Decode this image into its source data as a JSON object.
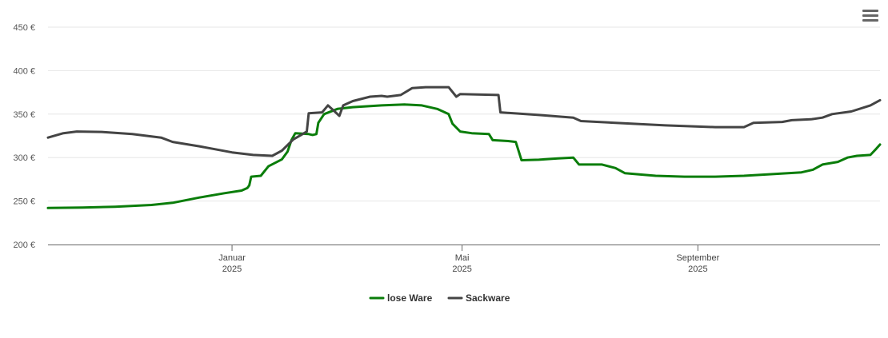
{
  "colors": {
    "lose_ware": "#0a7d0a",
    "sackware": "#444444",
    "grid": "#e6e6e6",
    "axis": "#666666"
  },
  "icons": {
    "menu": "hamburger-menu-icon"
  },
  "chart_data": {
    "type": "line",
    "title": "",
    "xlabel": "",
    "ylabel": "",
    "ylim": [
      200,
      450
    ],
    "yticks": [
      200,
      250,
      300,
      350,
      400,
      450
    ],
    "ytick_labels": [
      "200 €",
      "250 €",
      "300 €",
      "350 €",
      "400 €",
      "450 €"
    ],
    "xlim": [
      "2024-09-27",
      "2025-12-05"
    ],
    "xticks": [
      {
        "date": "2025-01-01",
        "line1": "Januar",
        "line2": "2025"
      },
      {
        "date": "2025-05-01",
        "line1": "Mai",
        "line2": "2025"
      },
      {
        "date": "2025-09-01",
        "line1": "September",
        "line2": "2025"
      }
    ],
    "grid": true,
    "legend": "bottom-center",
    "series": [
      {
        "name": "lose Ware",
        "color": "#0a7d0a",
        "points": [
          [
            "2024-09-27",
            242
          ],
          [
            "2024-10-15",
            242.5
          ],
          [
            "2024-11-01",
            243.5
          ],
          [
            "2024-11-20",
            245.5
          ],
          [
            "2024-12-01",
            248
          ],
          [
            "2024-12-15",
            254
          ],
          [
            "2024-12-28",
            259
          ],
          [
            "2025-01-06",
            262
          ],
          [
            "2025-01-09",
            265
          ],
          [
            "2025-01-10",
            268
          ],
          [
            "2025-01-11",
            278
          ],
          [
            "2025-01-16",
            279
          ],
          [
            "2025-01-20",
            290
          ],
          [
            "2025-01-27",
            298
          ],
          [
            "2025-01-30",
            307
          ],
          [
            "2025-02-01",
            320
          ],
          [
            "2025-02-03",
            328
          ],
          [
            "2025-02-10",
            327
          ],
          [
            "2025-02-12",
            326
          ],
          [
            "2025-02-14",
            327
          ],
          [
            "2025-02-15",
            340
          ],
          [
            "2025-02-18",
            350
          ],
          [
            "2025-02-25",
            356
          ],
          [
            "2025-03-05",
            358
          ],
          [
            "2025-03-20",
            360
          ],
          [
            "2025-04-01",
            361
          ],
          [
            "2025-04-10",
            360
          ],
          [
            "2025-04-18",
            356
          ],
          [
            "2025-04-24",
            350
          ],
          [
            "2025-04-26",
            339
          ],
          [
            "2025-04-30",
            330
          ],
          [
            "2025-05-06",
            328
          ],
          [
            "2025-05-15",
            327
          ],
          [
            "2025-05-17",
            320
          ],
          [
            "2025-05-25",
            319
          ],
          [
            "2025-05-29",
            318
          ],
          [
            "2025-06-01",
            297
          ],
          [
            "2025-06-10",
            297.5
          ],
          [
            "2025-06-20",
            299
          ],
          [
            "2025-06-28",
            300
          ],
          [
            "2025-07-01",
            292
          ],
          [
            "2025-07-13",
            292
          ],
          [
            "2025-07-20",
            288
          ],
          [
            "2025-07-25",
            282
          ],
          [
            "2025-08-10",
            279
          ],
          [
            "2025-08-25",
            278
          ],
          [
            "2025-09-10",
            278
          ],
          [
            "2025-09-25",
            279
          ],
          [
            "2025-10-10",
            281
          ],
          [
            "2025-10-25",
            283
          ],
          [
            "2025-10-31",
            286
          ],
          [
            "2025-11-05",
            292
          ],
          [
            "2025-11-13",
            295
          ],
          [
            "2025-11-18",
            300
          ],
          [
            "2025-11-23",
            302
          ],
          [
            "2025-11-30",
            303
          ],
          [
            "2025-12-03",
            310
          ],
          [
            "2025-12-05",
            315
          ]
        ]
      },
      {
        "name": "Sackware",
        "color": "#444444",
        "points": [
          [
            "2024-09-27",
            323
          ],
          [
            "2024-10-05",
            328
          ],
          [
            "2024-10-12",
            330
          ],
          [
            "2024-10-25",
            329.5
          ],
          [
            "2024-11-10",
            327
          ],
          [
            "2024-11-25",
            323
          ],
          [
            "2024-12-01",
            318
          ],
          [
            "2024-12-15",
            313
          ],
          [
            "2025-01-01",
            306
          ],
          [
            "2025-01-12",
            303
          ],
          [
            "2025-01-22",
            302
          ],
          [
            "2025-01-27",
            308
          ],
          [
            "2025-02-02",
            321
          ],
          [
            "2025-02-06",
            326
          ],
          [
            "2025-02-09",
            330
          ],
          [
            "2025-02-10",
            351
          ],
          [
            "2025-02-17",
            352
          ],
          [
            "2025-02-20",
            360
          ],
          [
            "2025-02-23",
            354
          ],
          [
            "2025-02-26",
            348
          ],
          [
            "2025-02-28",
            360
          ],
          [
            "2025-03-05",
            365
          ],
          [
            "2025-03-14",
            370
          ],
          [
            "2025-03-20",
            371
          ],
          [
            "2025-03-23",
            370
          ],
          [
            "2025-03-30",
            372
          ],
          [
            "2025-04-05",
            380
          ],
          [
            "2025-04-12",
            381
          ],
          [
            "2025-04-24",
            381
          ],
          [
            "2025-04-28",
            370
          ],
          [
            "2025-04-30",
            373
          ],
          [
            "2025-05-20",
            372
          ],
          [
            "2025-05-21",
            352
          ],
          [
            "2025-06-10",
            349
          ],
          [
            "2025-06-28",
            346
          ],
          [
            "2025-07-02",
            342
          ],
          [
            "2025-07-20",
            340
          ],
          [
            "2025-08-15",
            337
          ],
          [
            "2025-09-10",
            335
          ],
          [
            "2025-09-25",
            335
          ],
          [
            "2025-09-30",
            340
          ],
          [
            "2025-10-15",
            341
          ],
          [
            "2025-10-20",
            343
          ],
          [
            "2025-10-30",
            344
          ],
          [
            "2025-11-05",
            346
          ],
          [
            "2025-11-10",
            350
          ],
          [
            "2025-11-20",
            353
          ],
          [
            "2025-11-30",
            360
          ],
          [
            "2025-12-05",
            366
          ]
        ]
      }
    ]
  }
}
